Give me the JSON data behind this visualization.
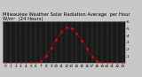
{
  "title": "Milwaukee Weather Solar Radiation Average  per Hour W/m²  (24 Hours)",
  "hours": [
    0,
    1,
    2,
    3,
    4,
    5,
    6,
    7,
    8,
    9,
    10,
    11,
    12,
    13,
    14,
    15,
    16,
    17,
    18,
    19,
    20,
    21,
    22,
    23
  ],
  "values": [
    0,
    0,
    0,
    0,
    0,
    0,
    2,
    25,
    110,
    220,
    340,
    450,
    510,
    500,
    430,
    330,
    210,
    100,
    25,
    3,
    0,
    0,
    0,
    0
  ],
  "line_color": "#ff0000",
  "bg_color": "#c8c8c8",
  "plot_bg": "#1a1a1a",
  "title_color": "#000000",
  "ylim": [
    0,
    600
  ],
  "ytick_values": [
    100,
    200,
    300,
    400,
    500,
    600
  ],
  "ytick_labels": [
    "1",
    "2",
    "3",
    "4",
    "5",
    "6"
  ],
  "xticks": [
    0,
    1,
    2,
    3,
    4,
    5,
    6,
    7,
    8,
    9,
    10,
    11,
    12,
    13,
    14,
    15,
    16,
    17,
    18,
    19,
    20,
    21,
    22,
    23
  ],
  "title_fontsize": 3.8,
  "tick_fontsize": 3.0,
  "grid_color": "#555555",
  "spine_color": "#888888",
  "figsize": [
    1.6,
    0.87
  ],
  "dpi": 100
}
